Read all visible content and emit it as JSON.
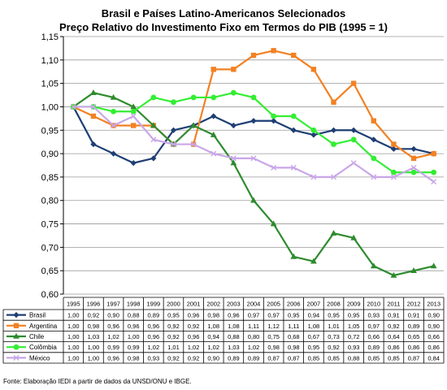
{
  "chart_data": {
    "type": "line",
    "title": "Brasil e Países Latino-Americanos Selecionados",
    "subtitle": "Preço Relativo do Investimento Fixo em Termos do PIB (1995 = 1)",
    "ylim": [
      0.6,
      1.15
    ],
    "y_ticks": [
      "0,60",
      "0,65",
      "0,70",
      "0,75",
      "0,80",
      "0,85",
      "0,90",
      "0,95",
      "1,00",
      "1,05",
      "1,10",
      "1,15"
    ],
    "grid": true,
    "x": [
      "1995",
      "1996",
      "1997",
      "1998",
      "1999",
      "2000",
      "2001",
      "2002",
      "2003",
      "2004",
      "2005",
      "2006",
      "2007",
      "2008",
      "2009",
      "2010",
      "2011",
      "2012",
      "2013"
    ],
    "series": [
      {
        "name": "Brasil",
        "color": "#1f3f74",
        "marker": "diamond",
        "values": [
          1.0,
          0.92,
          0.9,
          0.88,
          0.89,
          0.95,
          0.96,
          0.98,
          0.96,
          0.97,
          0.97,
          0.95,
          0.94,
          0.95,
          0.95,
          0.93,
          0.91,
          0.91,
          0.9
        ],
        "table_values": [
          "1,00",
          "0,92",
          "0,90",
          "0,88",
          "0,89",
          "0,95",
          "0,96",
          "0,98",
          "0,96",
          "0,97",
          "0,97",
          "0,95",
          "0,94",
          "0,95",
          "0,95",
          "0,93",
          "0,91",
          "0,91",
          "0,90"
        ]
      },
      {
        "name": "Argentina",
        "color": "#f28123",
        "marker": "square",
        "values": [
          1.0,
          0.98,
          0.96,
          0.96,
          0.96,
          null,
          0.92,
          1.08,
          1.08,
          1.11,
          1.12,
          1.11,
          1.08,
          1.01,
          1.05,
          0.97,
          0.92,
          0.89,
          0.9
        ],
        "segment_breaks": [
          [
            4,
            5
          ],
          [
            5,
            6
          ]
        ],
        "display_points": {
          "5": 0.92
        },
        "table_values": [
          "1,00",
          "0,98",
          "0,96",
          "0,96",
          "0,96",
          "0,92",
          "0,92",
          "1,08",
          "1,08",
          "1,11",
          "1,12",
          "1,11",
          "1,08",
          "1,01",
          "1,05",
          "0,97",
          "0,92",
          "0,89",
          "0,90"
        ]
      },
      {
        "name": "Chile",
        "color": "#2e8b2e",
        "marker": "triangle",
        "values": [
          1.0,
          1.03,
          1.02,
          1.0,
          0.96,
          0.92,
          0.96,
          0.94,
          0.88,
          0.8,
          0.75,
          0.68,
          0.67,
          0.73,
          0.72,
          0.66,
          0.64,
          0.65,
          0.66
        ],
        "table_values": [
          "1,00",
          "1,03",
          "1,02",
          "1,00",
          "0,96",
          "0,92",
          "0,96",
          "0,94",
          "0,88",
          "0,80",
          "0,75",
          "0,68",
          "0,67",
          "0,73",
          "0,72",
          "0,66",
          "0,64",
          "0,65",
          "0,66"
        ]
      },
      {
        "name": "Colômbia",
        "color": "#33ee33",
        "marker": "circle",
        "values": [
          1.0,
          1.0,
          0.99,
          0.99,
          1.02,
          1.01,
          1.02,
          1.02,
          1.03,
          1.02,
          0.98,
          0.98,
          0.95,
          0.92,
          0.93,
          0.89,
          0.86,
          0.86,
          0.86
        ],
        "table_values": [
          "1,00",
          "1,00",
          "0,99",
          "0,99",
          "1,02",
          "1,01",
          "1,02",
          "1,02",
          "1,03",
          "1,02",
          "0,98",
          "0,98",
          "0,95",
          "0,92",
          "0,93",
          "0,89",
          "0,86",
          "0,86",
          "0,86"
        ]
      },
      {
        "name": "México",
        "color": "#c9a6e8",
        "marker": "x",
        "values": [
          1.0,
          1.0,
          0.96,
          0.98,
          0.93,
          0.92,
          0.92,
          0.9,
          0.89,
          0.89,
          0.87,
          0.87,
          0.85,
          0.85,
          0.88,
          0.85,
          0.85,
          0.87,
          0.84
        ],
        "table_values": [
          "1,00",
          "1,00",
          "0,96",
          "0,98",
          "0,93",
          "0,92",
          "0,92",
          "0,90",
          "0,89",
          "0,89",
          "0,87",
          "0,87",
          "0,85",
          "0,85",
          "0,88",
          "0,85",
          "0,85",
          "0,87",
          "0,84"
        ]
      }
    ],
    "legend_position": "table-left",
    "source_note": "Fonte: Elaboração IEDI a partir de dados da UNSD/ONU e IBGE."
  }
}
